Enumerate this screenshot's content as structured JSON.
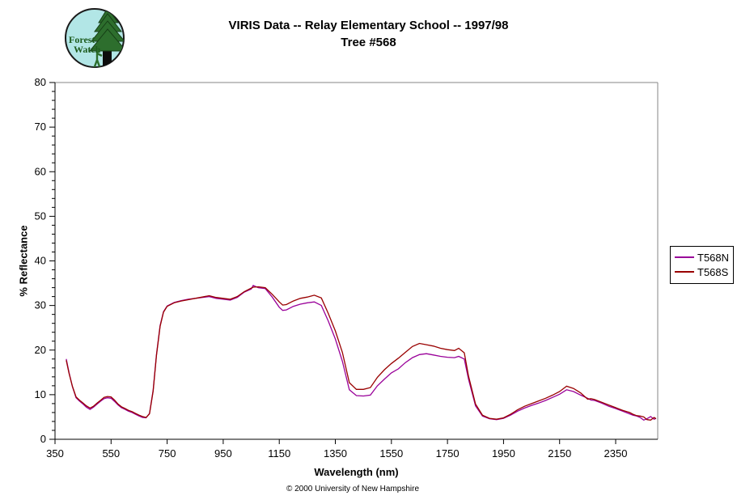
{
  "header": {
    "title_line1": "VIRIS Data -- Relay Elementary School -- 1997/98",
    "title_line2": "Tree #568",
    "logo": {
      "text_line1": "Forest",
      "text_line2": "Watch",
      "bg_color": "#b2e6e6",
      "tree_color": "#2d6e2d",
      "text_color": "#1e5c1e"
    }
  },
  "footer": {
    "copyright": "© 2000 University of New Hampshire"
  },
  "legend": {
    "items": [
      {
        "label": "T568N",
        "color": "#990099"
      },
      {
        "label": "T568S",
        "color": "#990000"
      }
    ]
  },
  "chart_data": {
    "type": "line",
    "title": "VIRIS Data -- Relay Elementary School -- 1997/98 — Tree #568",
    "xlabel": "Wavelength (nm)",
    "ylabel": "% Reflectance",
    "xlim": [
      350,
      2500
    ],
    "ylim": [
      0,
      80
    ],
    "grid": false,
    "legend_position": "right-outside",
    "plot_border_color": "#848484",
    "axis_color": "#000000",
    "x_major_ticks": [
      350,
      550,
      750,
      950,
      1150,
      1350,
      1550,
      1750,
      1950,
      2150,
      2350
    ],
    "y_major_ticks": [
      0,
      10,
      20,
      30,
      40,
      50,
      60,
      70,
      80
    ],
    "y_minor_tick_step": 2,
    "x": [
      390,
      400,
      412,
      425,
      437,
      450,
      462,
      475,
      487,
      500,
      512,
      525,
      537,
      550,
      562,
      575,
      587,
      600,
      612,
      625,
      637,
      650,
      662,
      675,
      687,
      700,
      712,
      725,
      737,
      750,
      775,
      800,
      825,
      850,
      875,
      900,
      925,
      950,
      975,
      1000,
      1025,
      1050,
      1057,
      1075,
      1100,
      1125,
      1150,
      1162,
      1175,
      1200,
      1225,
      1250,
      1275,
      1300,
      1325,
      1350,
      1375,
      1400,
      1425,
      1450,
      1475,
      1500,
      1525,
      1550,
      1575,
      1600,
      1625,
      1650,
      1675,
      1700,
      1725,
      1750,
      1775,
      1790,
      1810,
      1825,
      1850,
      1875,
      1900,
      1925,
      1950,
      1975,
      2000,
      2025,
      2050,
      2075,
      2100,
      2125,
      2150,
      2175,
      2200,
      2225,
      2250,
      2262,
      2275,
      2300,
      2325,
      2350,
      2375,
      2400,
      2412,
      2425,
      2437,
      2450,
      2462,
      2475,
      2487,
      2494
    ],
    "series": [
      {
        "name": "T568N",
        "color": "#990099",
        "values": [
          18.0,
          15.0,
          11.8,
          9.3,
          8.6,
          7.9,
          7.2,
          6.7,
          7.2,
          7.9,
          8.5,
          9.1,
          9.3,
          9.2,
          8.5,
          7.7,
          7.1,
          6.7,
          6.3,
          6.0,
          5.6,
          5.2,
          4.9,
          4.8,
          5.8,
          11.0,
          19.0,
          25.5,
          28.6,
          29.9,
          30.7,
          31.1,
          31.4,
          31.6,
          31.8,
          32.0,
          31.6,
          31.4,
          31.2,
          31.8,
          33.0,
          33.7,
          34.5,
          34.0,
          33.8,
          31.9,
          29.6,
          28.9,
          29.0,
          29.8,
          30.3,
          30.6,
          30.8,
          30.0,
          26.5,
          22.5,
          17.5,
          11.1,
          9.8,
          9.7,
          9.9,
          12.0,
          13.5,
          14.9,
          15.8,
          17.2,
          18.3,
          19.0,
          19.2,
          18.9,
          18.6,
          18.4,
          18.3,
          18.6,
          18.0,
          13.5,
          7.5,
          5.2,
          4.6,
          4.4,
          4.7,
          5.4,
          6.3,
          7.0,
          7.6,
          8.1,
          8.7,
          9.4,
          10.1,
          11.1,
          10.7,
          9.9,
          9.2,
          8.8,
          8.7,
          8.1,
          7.4,
          6.9,
          6.3,
          5.7,
          5.4,
          5.2,
          4.9,
          4.3,
          4.6,
          5.1,
          4.5,
          4.7
        ]
      },
      {
        "name": "T568S",
        "color": "#990000",
        "values": [
          17.7,
          14.8,
          11.9,
          9.5,
          8.8,
          8.1,
          7.5,
          7.0,
          7.4,
          8.1,
          8.7,
          9.4,
          9.6,
          9.5,
          8.8,
          7.9,
          7.3,
          6.9,
          6.5,
          6.2,
          5.8,
          5.4,
          5.1,
          4.9,
          5.7,
          10.8,
          18.8,
          25.3,
          28.5,
          29.8,
          30.6,
          31.0,
          31.3,
          31.6,
          31.9,
          32.2,
          31.8,
          31.6,
          31.4,
          32.0,
          33.1,
          33.9,
          34.1,
          34.2,
          34.0,
          32.5,
          30.8,
          30.1,
          30.2,
          31.0,
          31.6,
          31.9,
          32.3,
          31.7,
          28.2,
          24.3,
          19.5,
          12.7,
          11.2,
          11.2,
          11.6,
          13.9,
          15.6,
          17.0,
          18.2,
          19.5,
          20.8,
          21.5,
          21.2,
          20.9,
          20.4,
          20.1,
          19.9,
          20.4,
          19.4,
          14.2,
          7.9,
          5.4,
          4.7,
          4.5,
          4.8,
          5.6,
          6.6,
          7.4,
          8.0,
          8.6,
          9.2,
          9.9,
          10.7,
          11.9,
          11.4,
          10.4,
          9.0,
          9.1,
          8.9,
          8.3,
          7.7,
          7.1,
          6.5,
          6.0,
          5.6,
          5.3,
          5.2,
          5.0,
          4.4,
          4.3,
          4.9,
          4.6
        ]
      }
    ]
  }
}
